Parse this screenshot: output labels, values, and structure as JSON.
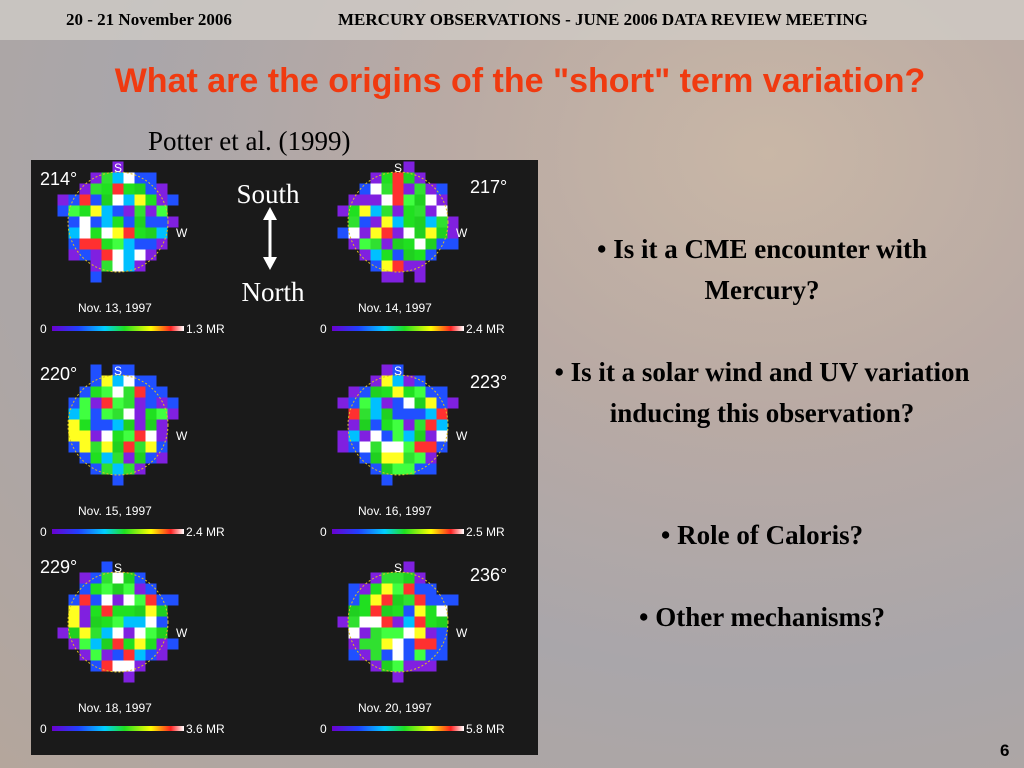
{
  "header": {
    "date": "20 - 21 November 2006",
    "meeting": "MERCURY OBSERVATIONS - JUNE 2006 DATA REVIEW MEETING"
  },
  "title": "What are the origins of the \"short\" term variation?",
  "citation": "Potter et al. (1999)",
  "figure": {
    "direction": {
      "top": "South",
      "bottom": "North"
    },
    "panels": [
      {
        "angle": "214°",
        "south": "S",
        "west": "W",
        "date": "Nov. 13, 1997",
        "scale_min": "0",
        "scale_max": "1.3 MR"
      },
      {
        "angle": "217°",
        "south": "S",
        "west": "W",
        "date": "Nov. 14, 1997",
        "scale_min": "0",
        "scale_max": "2.4 MR"
      },
      {
        "angle": "220°",
        "south": "S",
        "west": "W",
        "date": "Nov. 15, 1997",
        "scale_min": "0",
        "scale_max": "2.4 MR"
      },
      {
        "angle": "223°",
        "south": "S",
        "west": "W",
        "date": "Nov. 16, 1997",
        "scale_min": "0",
        "scale_max": "2.5 MR"
      },
      {
        "angle": "229°",
        "south": "S",
        "west": "W",
        "date": "Nov. 18, 1997",
        "scale_min": "0",
        "scale_max": "3.6 MR"
      },
      {
        "angle": "236°",
        "south": "S",
        "west": "W",
        "date": "Nov. 20, 1997",
        "scale_min": "0",
        "scale_max": "5.8 MR"
      }
    ]
  },
  "bullets": [
    "• Is it a CME encounter with Mercury?",
    "• Is it a solar wind and UV variation inducing this observation?",
    "• Role of Caloris?",
    "• Other mechanisms?"
  ],
  "page_number": "6"
}
